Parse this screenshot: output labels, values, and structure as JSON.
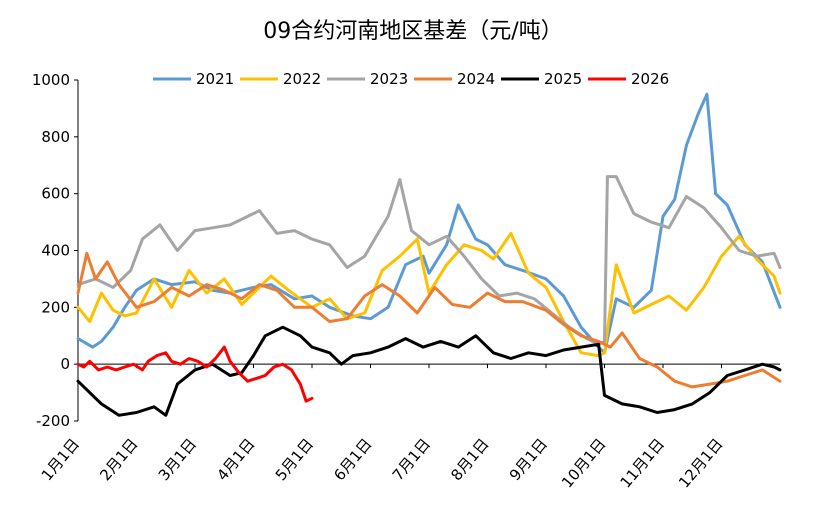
{
  "chart_data": {
    "type": "line",
    "title": "09合约河南地区基差（元/吨）",
    "xlabel": "",
    "ylabel": "",
    "ylim": [
      -200,
      1000
    ],
    "yticks": [
      "1000",
      "800",
      "600",
      "400",
      "200",
      "0",
      "-200"
    ],
    "x_categories": [
      "1月1日",
      "2月1日",
      "3月1日",
      "4月1日",
      "5月1日",
      "6月1日",
      "7月1日",
      "8月1日",
      "9月1日",
      "10月1日",
      "11月1日",
      "12月1日"
    ],
    "x_unit": "month",
    "x_range": [
      0,
      12
    ],
    "grid": false,
    "legend_position": "top",
    "series": [
      {
        "name": "2021",
        "color": "#5B9BD5",
        "x": [
          0.0,
          0.25,
          0.4,
          0.6,
          0.8,
          1.0,
          1.3,
          1.6,
          2.0,
          2.3,
          2.6,
          3.0,
          3.3,
          3.7,
          4.0,
          4.3,
          4.7,
          5.0,
          5.3,
          5.6,
          5.9,
          6.0,
          6.3,
          6.5,
          6.8,
          7.0,
          7.3,
          7.6,
          8.0,
          8.3,
          8.6,
          8.9,
          9.0,
          9.2,
          9.5,
          9.8,
          10.0,
          10.2,
          10.4,
          10.6,
          10.75,
          10.9,
          11.1,
          11.4,
          11.7,
          12.0
        ],
        "values": [
          90,
          60,
          80,
          130,
          200,
          260,
          300,
          280,
          290,
          260,
          250,
          270,
          280,
          230,
          240,
          200,
          170,
          160,
          200,
          350,
          380,
          320,
          420,
          560,
          440,
          420,
          350,
          330,
          300,
          240,
          130,
          60,
          40,
          230,
          200,
          260,
          520,
          580,
          770,
          880,
          950,
          600,
          560,
          420,
          360,
          200
        ]
      },
      {
        "name": "2022",
        "color": "#FFC000",
        "x": [
          0.0,
          0.2,
          0.4,
          0.6,
          0.8,
          1.0,
          1.3,
          1.6,
          1.9,
          2.2,
          2.5,
          2.8,
          3.0,
          3.3,
          3.6,
          4.0,
          4.3,
          4.6,
          4.9,
          5.2,
          5.5,
          5.8,
          6.0,
          6.3,
          6.6,
          6.9,
          7.1,
          7.4,
          7.7,
          8.0,
          8.3,
          8.6,
          8.9,
          9.0,
          9.2,
          9.5,
          9.8,
          10.1,
          10.4,
          10.7,
          11.0,
          11.3,
          11.6,
          11.9,
          12.0
        ],
        "values": [
          200,
          150,
          250,
          190,
          170,
          180,
          300,
          200,
          330,
          250,
          300,
          210,
          250,
          310,
          260,
          200,
          230,
          160,
          180,
          330,
          380,
          440,
          250,
          350,
          420,
          400,
          370,
          460,
          320,
          270,
          150,
          40,
          30,
          40,
          350,
          180,
          210,
          240,
          190,
          270,
          380,
          450,
          370,
          310,
          250
        ]
      },
      {
        "name": "2023",
        "color": "#A5A5A5",
        "x": [
          0.0,
          0.3,
          0.6,
          0.9,
          1.1,
          1.4,
          1.7,
          2.0,
          2.3,
          2.6,
          2.9,
          3.1,
          3.4,
          3.7,
          4.0,
          4.3,
          4.6,
          4.9,
          5.1,
          5.3,
          5.5,
          5.7,
          6.0,
          6.3,
          6.6,
          6.9,
          7.2,
          7.5,
          7.8,
          8.1,
          8.4,
          8.7,
          8.9,
          9.0,
          9.05,
          9.2,
          9.5,
          9.8,
          10.1,
          10.4,
          10.7,
          11.0,
          11.3,
          11.6,
          11.9,
          12.0
        ],
        "values": [
          280,
          300,
          270,
          330,
          440,
          490,
          400,
          470,
          480,
          490,
          520,
          540,
          460,
          470,
          440,
          420,
          340,
          380,
          450,
          520,
          650,
          470,
          420,
          450,
          380,
          300,
          240,
          250,
          230,
          180,
          130,
          90,
          70,
          80,
          660,
          660,
          530,
          500,
          480,
          590,
          550,
          480,
          400,
          380,
          390,
          340
        ]
      },
      {
        "name": "2024",
        "color": "#ED7D31",
        "x": [
          0.0,
          0.15,
          0.3,
          0.5,
          0.7,
          1.0,
          1.3,
          1.6,
          1.9,
          2.2,
          2.5,
          2.8,
          3.1,
          3.4,
          3.7,
          4.0,
          4.3,
          4.6,
          4.9,
          5.2,
          5.5,
          5.8,
          6.1,
          6.4,
          6.7,
          7.0,
          7.3,
          7.6,
          8.0,
          8.3,
          8.6,
          8.9,
          9.1,
          9.3,
          9.6,
          9.9,
          10.2,
          10.5,
          10.8,
          11.1,
          11.4,
          11.7,
          12.0
        ],
        "values": [
          250,
          390,
          300,
          360,
          280,
          200,
          220,
          270,
          240,
          280,
          260,
          230,
          280,
          260,
          200,
          200,
          150,
          160,
          240,
          280,
          240,
          180,
          270,
          210,
          200,
          250,
          220,
          220,
          190,
          140,
          100,
          80,
          60,
          110,
          20,
          -10,
          -60,
          -80,
          -70,
          -60,
          -40,
          -20,
          -60
        ]
      },
      {
        "name": "2025",
        "color": "#000000",
        "x": [
          0.0,
          0.2,
          0.4,
          0.7,
          1.0,
          1.3,
          1.5,
          1.7,
          2.0,
          2.3,
          2.6,
          2.8,
          3.0,
          3.2,
          3.5,
          3.8,
          4.0,
          4.3,
          4.5,
          4.7,
          5.0,
          5.3,
          5.6,
          5.9,
          6.2,
          6.5,
          6.8,
          7.1,
          7.4,
          7.7,
          8.0,
          8.3,
          8.6,
          8.9,
          9.0,
          9.3,
          9.6,
          9.9,
          10.2,
          10.5,
          10.8,
          11.1,
          11.4,
          11.7,
          11.9,
          12.0
        ],
        "values": [
          -60,
          -100,
          -140,
          -180,
          -170,
          -150,
          -180,
          -70,
          -20,
          0,
          -40,
          -30,
          30,
          100,
          130,
          100,
          60,
          40,
          0,
          30,
          40,
          60,
          90,
          60,
          80,
          60,
          100,
          40,
          20,
          40,
          30,
          50,
          60,
          70,
          -110,
          -140,
          -150,
          -170,
          -160,
          -140,
          -100,
          -40,
          -20,
          0,
          -10,
          -20
        ]
      },
      {
        "name": "2026",
        "color": "#FF0000",
        "x": [
          0.0,
          0.1,
          0.2,
          0.35,
          0.5,
          0.65,
          0.8,
          0.95,
          1.1,
          1.2,
          1.35,
          1.5,
          1.6,
          1.75,
          1.9,
          2.05,
          2.2,
          2.35,
          2.5,
          2.6,
          2.75,
          2.9,
          3.05,
          3.2,
          3.35,
          3.5,
          3.65,
          3.8,
          3.9,
          4.0
        ],
        "values": [
          0,
          -10,
          10,
          -20,
          -10,
          -20,
          -10,
          0,
          -20,
          10,
          30,
          40,
          10,
          0,
          20,
          10,
          -10,
          20,
          60,
          10,
          -30,
          -60,
          -50,
          -40,
          -10,
          0,
          -20,
          -70,
          -130,
          -120
        ]
      }
    ]
  }
}
